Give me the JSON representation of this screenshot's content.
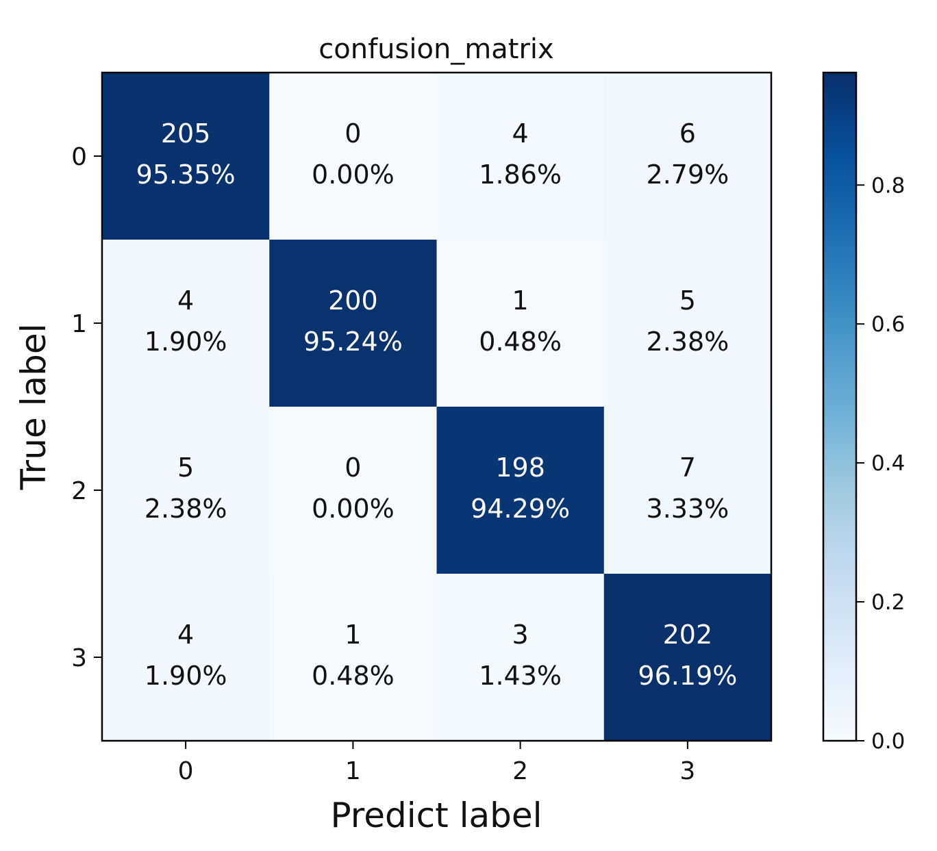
{
  "chart_data": {
    "type": "heatmap",
    "title": "confusion_matrix",
    "xlabel": "Predict label",
    "ylabel": "True label",
    "x_categories": [
      "0",
      "1",
      "2",
      "3"
    ],
    "y_categories": [
      "0",
      "1",
      "2",
      "3"
    ],
    "counts": [
      [
        205,
        0,
        4,
        6
      ],
      [
        4,
        200,
        1,
        5
      ],
      [
        5,
        0,
        198,
        7
      ],
      [
        4,
        1,
        3,
        202
      ]
    ],
    "percent_labels": [
      [
        "95.35%",
        "0.00%",
        "1.86%",
        "2.79%"
      ],
      [
        "1.90%",
        "95.24%",
        "0.48%",
        "2.38%"
      ],
      [
        "2.38%",
        "0.00%",
        "94.29%",
        "3.33%"
      ],
      [
        "1.90%",
        "0.48%",
        "1.43%",
        "96.19%"
      ]
    ],
    "values": [
      [
        0.9535,
        0.0,
        0.0186,
        0.0279
      ],
      [
        0.019,
        0.9524,
        0.0048,
        0.0238
      ],
      [
        0.0238,
        0.0,
        0.9429,
        0.0333
      ],
      [
        0.019,
        0.0048,
        0.0143,
        0.9619
      ]
    ],
    "colormap": "Blues",
    "colorbar": {
      "range": [
        0.0,
        0.9619
      ],
      "ticks": [
        0.0,
        0.2,
        0.4,
        0.6,
        0.8
      ],
      "tick_labels": [
        "0.0",
        "0.2",
        "0.4",
        "0.6",
        "0.8"
      ]
    },
    "grid": false
  }
}
